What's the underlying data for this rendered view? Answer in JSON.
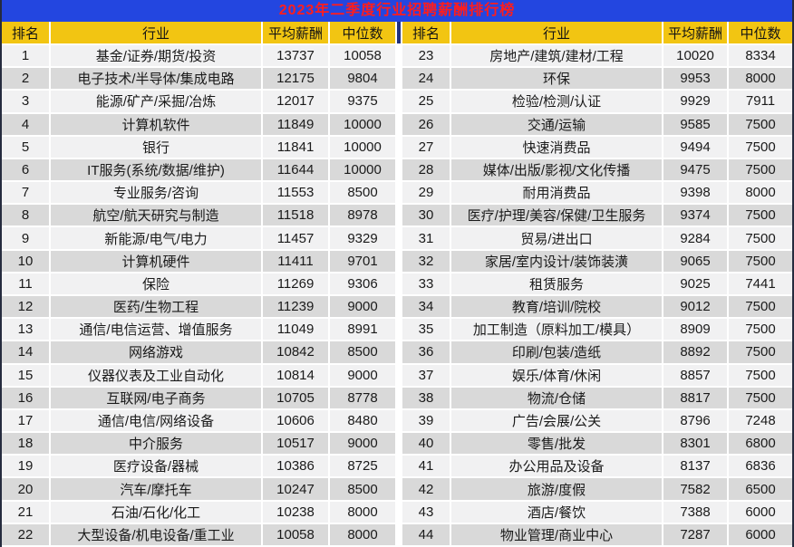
{
  "title": "2023年二季度行业招聘薪酬排行榜",
  "colors": {
    "title_bar_bg": "#2346e0",
    "title_text": "#ff1d1d",
    "header_bg": "#f2c512",
    "header_text": "#141414",
    "row_light": "#f1f1f2",
    "row_dark": "#d9d9d9",
    "gridline": "#ffffff",
    "header_divider": "#20317f",
    "outer_border": "#252b3e",
    "cell_text": "#1a1a1a"
  },
  "chart_data": {
    "type": "table",
    "title": "2023年二季度行业招聘薪酬排行榜",
    "columns": [
      "排名",
      "行业",
      "平均薪酬",
      "中位数"
    ],
    "layout": "two side-by-side halves: ranks 1-22 left, ranks 23-44 right",
    "left_rows": [
      [
        "1",
        "基金/证券/期货/投资",
        "13737",
        "10058"
      ],
      [
        "2",
        "电子技术/半导体/集成电路",
        "12175",
        "9804"
      ],
      [
        "3",
        "能源/矿产/采掘/冶炼",
        "12017",
        "9375"
      ],
      [
        "4",
        "计算机软件",
        "11849",
        "10000"
      ],
      [
        "5",
        "银行",
        "11841",
        "10000"
      ],
      [
        "6",
        "IT服务(系统/数据/维护)",
        "11644",
        "10000"
      ],
      [
        "7",
        "专业服务/咨询",
        "11553",
        "8500"
      ],
      [
        "8",
        "航空/航天研究与制造",
        "11518",
        "8978"
      ],
      [
        "9",
        "新能源/电气/电力",
        "11457",
        "9329"
      ],
      [
        "10",
        "计算机硬件",
        "11411",
        "9701"
      ],
      [
        "11",
        "保险",
        "11269",
        "9306"
      ],
      [
        "12",
        "医药/生物工程",
        "11239",
        "9000"
      ],
      [
        "13",
        "通信/电信运营、增值服务",
        "11049",
        "8991"
      ],
      [
        "14",
        "网络游戏",
        "10842",
        "8500"
      ],
      [
        "15",
        "仪器仪表及工业自动化",
        "10814",
        "9000"
      ],
      [
        "16",
        "互联网/电子商务",
        "10705",
        "8778"
      ],
      [
        "17",
        "通信/电信/网络设备",
        "10606",
        "8480"
      ],
      [
        "18",
        "中介服务",
        "10517",
        "9000"
      ],
      [
        "19",
        "医疗设备/器械",
        "10386",
        "8725"
      ],
      [
        "20",
        "汽车/摩托车",
        "10247",
        "8500"
      ],
      [
        "21",
        "石油/石化/化工",
        "10238",
        "8000"
      ],
      [
        "22",
        "大型设备/机电设备/重工业",
        "10058",
        "8000"
      ]
    ],
    "right_rows": [
      [
        "23",
        "房地产/建筑/建材/工程",
        "10020",
        "8334"
      ],
      [
        "24",
        "环保",
        "9953",
        "8000"
      ],
      [
        "25",
        "检验/检测/认证",
        "9929",
        "7911"
      ],
      [
        "26",
        "交通/运输",
        "9585",
        "7500"
      ],
      [
        "27",
        "快速消费品",
        "9494",
        "7500"
      ],
      [
        "28",
        "媒体/出版/影视/文化传播",
        "9475",
        "7500"
      ],
      [
        "29",
        "耐用消费品",
        "9398",
        "8000"
      ],
      [
        "30",
        "医疗/护理/美容/保健/卫生服务",
        "9374",
        "7500"
      ],
      [
        "31",
        "贸易/进出口",
        "9284",
        "7500"
      ],
      [
        "32",
        "家居/室内设计/装饰装潢",
        "9065",
        "7500"
      ],
      [
        "33",
        "租赁服务",
        "9025",
        "7441"
      ],
      [
        "34",
        "教育/培训/院校",
        "9012",
        "7500"
      ],
      [
        "35",
        "加工制造（原料加工/模具）",
        "8909",
        "7500"
      ],
      [
        "36",
        "印刷/包装/造纸",
        "8892",
        "7500"
      ],
      [
        "37",
        "娱乐/体育/休闲",
        "8857",
        "7500"
      ],
      [
        "38",
        "物流/仓储",
        "8817",
        "7500"
      ],
      [
        "39",
        "广告/会展/公关",
        "8796",
        "7248"
      ],
      [
        "40",
        "零售/批发",
        "8301",
        "6800"
      ],
      [
        "41",
        "办公用品及设备",
        "8137",
        "6836"
      ],
      [
        "42",
        "旅游/度假",
        "7582",
        "6500"
      ],
      [
        "43",
        "酒店/餐饮",
        "7388",
        "6000"
      ],
      [
        "44",
        "物业管理/商业中心",
        "7287",
        "6000"
      ]
    ]
  }
}
